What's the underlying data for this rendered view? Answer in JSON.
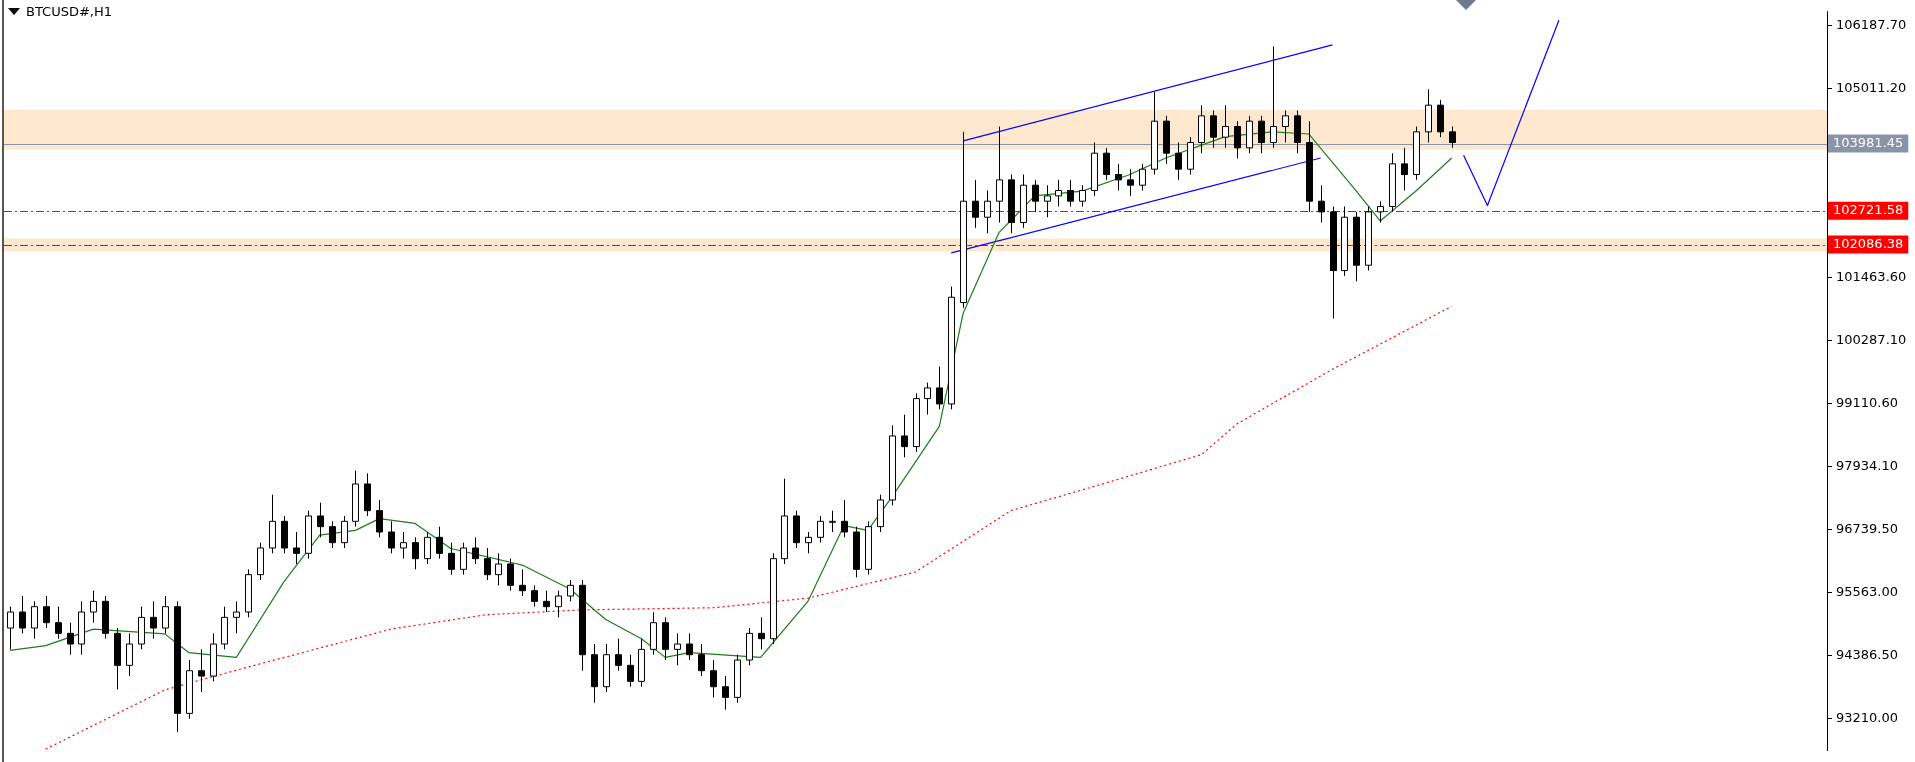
{
  "chart_data": {
    "type": "candlestick",
    "title": "BTCUSD#,H1",
    "categories": [
      null,
      null,
      null,
      null,
      null,
      null,
      null,
      null,
      null,
      null,
      null,
      null,
      null,
      null,
      null,
      null,
      null,
      null,
      null,
      null,
      null,
      null,
      null,
      null,
      null,
      null,
      null,
      null,
      null,
      null,
      null,
      null,
      null,
      null,
      null,
      null,
      null,
      null,
      null,
      null,
      null,
      null,
      null,
      null,
      null,
      null,
      null,
      null,
      null,
      null,
      null,
      null,
      null,
      null,
      null,
      null,
      null,
      null,
      null,
      null,
      null,
      null,
      null,
      null,
      null,
      null,
      null,
      null,
      null,
      null,
      null,
      null,
      null,
      null,
      null,
      null,
      null,
      null,
      null,
      null,
      null,
      null,
      null,
      null,
      null,
      null,
      null,
      null,
      null,
      null,
      null,
      null,
      null,
      null,
      null,
      null,
      null,
      null,
      null,
      null,
      null,
      null,
      null,
      null,
      null,
      null,
      null,
      null,
      null,
      null,
      null,
      null,
      null,
      null,
      null,
      null,
      null,
      null,
      null,
      null,
      null,
      null,
      null,
      null,
      null,
      null,
      null,
      null,
      null,
      null,
      null,
      null,
      null,
      null,
      null,
      null,
      null,
      null,
      null,
      null,
      null,
      null,
      null,
      null,
      null,
      null,
      null,
      null,
      null,
      null,
      null,
      null,
      null
    ],
    "ohlc": [
      [
        94900,
        95300,
        94500,
        95200
      ],
      [
        95200,
        95500,
        94800,
        94900
      ],
      [
        94900,
        95400,
        94700,
        95300
      ],
      [
        95300,
        95500,
        94900,
        95000
      ],
      [
        95000,
        95300,
        94700,
        94800
      ],
      [
        94800,
        95000,
        94400,
        94600
      ],
      [
        94600,
        95400,
        94400,
        95200
      ],
      [
        95200,
        95600,
        95000,
        95400
      ],
      [
        95400,
        95500,
        94700,
        94800
      ],
      [
        94800,
        94900,
        93750,
        94200
      ],
      [
        94200,
        94800,
        94000,
        94600
      ],
      [
        94600,
        95300,
        94500,
        95100
      ],
      [
        95100,
        95400,
        94700,
        94900
      ],
      [
        94900,
        95500,
        94800,
        95300
      ],
      [
        95300,
        95400,
        92950,
        93300
      ],
      [
        93300,
        94300,
        93200,
        94100
      ],
      [
        94100,
        94500,
        93700,
        94000
      ],
      [
        94000,
        94800,
        93900,
        94600
      ],
      [
        94600,
        95300,
        94500,
        95100
      ],
      [
        95100,
        95400,
        94800,
        95200
      ],
      [
        95200,
        96000,
        95100,
        95900
      ],
      [
        95900,
        96500,
        95800,
        96400
      ],
      [
        96400,
        97400,
        96300,
        96900
      ],
      [
        96900,
        97000,
        96300,
        96400
      ],
      [
        96400,
        96700,
        96100,
        96300
      ],
      [
        96300,
        97100,
        96200,
        97000
      ],
      [
        97000,
        97250,
        96600,
        96800
      ],
      [
        96800,
        96900,
        96400,
        96500
      ],
      [
        96500,
        97000,
        96400,
        96900
      ],
      [
        96900,
        97850,
        96800,
        97600
      ],
      [
        97600,
        97800,
        97000,
        97100
      ],
      [
        97100,
        97300,
        96600,
        96700
      ],
      [
        96700,
        96900,
        96300,
        96400
      ],
      [
        96400,
        96700,
        96200,
        96500
      ],
      [
        96500,
        96600,
        96000,
        96200
      ],
      [
        96200,
        96700,
        96100,
        96600
      ],
      [
        96600,
        96800,
        96200,
        96300
      ],
      [
        96300,
        96500,
        95900,
        96000
      ],
      [
        96000,
        96500,
        95900,
        96400
      ],
      [
        96400,
        96600,
        96100,
        96200
      ],
      [
        96200,
        96400,
        95800,
        95900
      ],
      [
        95900,
        96300,
        95700,
        96100
      ],
      [
        96100,
        96200,
        95600,
        95700
      ],
      [
        95700,
        96000,
        95500,
        95600
      ],
      [
        95600,
        95700,
        95300,
        95400
      ],
      [
        95400,
        95600,
        95200,
        95300
      ],
      [
        95300,
        95600,
        95100,
        95500
      ],
      [
        95500,
        95800,
        95400,
        95700
      ],
      [
        95700,
        95800,
        94100,
        94400
      ],
      [
        94400,
        94600,
        93500,
        93800
      ],
      [
        93800,
        94600,
        93700,
        94400
      ],
      [
        94400,
        94700,
        94100,
        94200
      ],
      [
        94200,
        94400,
        93800,
        93900
      ],
      [
        93900,
        94700,
        93800,
        94500
      ],
      [
        94500,
        95200,
        94400,
        95000
      ],
      [
        95000,
        95100,
        94300,
        94500
      ],
      [
        94500,
        94800,
        94200,
        94600
      ],
      [
        94600,
        94800,
        94300,
        94400
      ],
      [
        94400,
        94600,
        94000,
        94100
      ],
      [
        94100,
        94300,
        93600,
        93800
      ],
      [
        93800,
        94000,
        93370,
        93600
      ],
      [
        93600,
        94400,
        93500,
        94300
      ],
      [
        94300,
        94900,
        94200,
        94800
      ],
      [
        94800,
        95100,
        94500,
        94700
      ],
      [
        94700,
        96300,
        94600,
        96200
      ],
      [
        96200,
        97700,
        96100,
        97000
      ],
      [
        97000,
        97100,
        96400,
        96500
      ],
      [
        96500,
        96700,
        96300,
        96600
      ],
      [
        96600,
        97000,
        96500,
        96900
      ],
      [
        96900,
        97100,
        96700,
        96900
      ],
      [
        96900,
        97300,
        96600,
        96700
      ],
      [
        96700,
        96800,
        95850,
        96000
      ],
      [
        96000,
        96900,
        95900,
        96800
      ],
      [
        96800,
        97400,
        96700,
        97300
      ],
      [
        97300,
        98700,
        97200,
        98500
      ],
      [
        98500,
        98900,
        98100,
        98300
      ],
      [
        98300,
        99300,
        98200,
        99200
      ],
      [
        99200,
        99500,
        98900,
        99400
      ],
      [
        99400,
        99800,
        99000,
        99100
      ],
      [
        99100,
        101300,
        99000,
        101100
      ],
      [
        101000,
        104200,
        100900,
        102900
      ],
      [
        102900,
        103300,
        102400,
        102600
      ],
      [
        102600,
        103100,
        102300,
        102900
      ],
      [
        102900,
        104300,
        102500,
        103300
      ],
      [
        103300,
        103400,
        102300,
        102500
      ],
      [
        102500,
        103400,
        102400,
        103200
      ],
      [
        103200,
        103300,
        102700,
        102900
      ],
      [
        102900,
        103200,
        102600,
        103000
      ],
      [
        103000,
        103300,
        102800,
        103100
      ],
      [
        103100,
        103300,
        102800,
        102900
      ],
      [
        102900,
        103200,
        102800,
        103100
      ],
      [
        103100,
        104000,
        103000,
        103800
      ],
      [
        103800,
        103900,
        103300,
        103400
      ],
      [
        103400,
        103600,
        103100,
        103300
      ],
      [
        103300,
        103500,
        103000,
        103200
      ],
      [
        103200,
        103600,
        103100,
        103500
      ],
      [
        103500,
        104950,
        103400,
        104400
      ],
      [
        104400,
        104500,
        103600,
        103800
      ],
      [
        103800,
        104000,
        103300,
        103500
      ],
      [
        103500,
        104100,
        103400,
        104000
      ],
      [
        104000,
        104700,
        103800,
        104500
      ],
      [
        104500,
        104600,
        103900,
        104100
      ],
      [
        104100,
        104700,
        103900,
        104300
      ],
      [
        104300,
        104400,
        103700,
        103900
      ],
      [
        103900,
        104500,
        103800,
        104400
      ],
      [
        104400,
        104500,
        103800,
        104000
      ],
      [
        104000,
        105800,
        103900,
        104300
      ],
      [
        104300,
        104600,
        104000,
        104500
      ],
      [
        104500,
        104600,
        103800,
        104000
      ],
      [
        104000,
        104400,
        102700,
        102900
      ],
      [
        102900,
        103200,
        102500,
        102700
      ],
      [
        102700,
        102800,
        100700,
        101600
      ],
      [
        101600,
        102800,
        101500,
        102600
      ],
      [
        102600,
        102700,
        101400,
        101700
      ],
      [
        101700,
        102800,
        101600,
        102700
      ],
      [
        102700,
        102900,
        102500,
        102800
      ],
      [
        102800,
        103800,
        102700,
        103600
      ],
      [
        103600,
        103900,
        103100,
        103400
      ],
      [
        103400,
        104300,
        103300,
        104200
      ],
      [
        104200,
        105000,
        104000,
        104700
      ],
      [
        104700,
        104800,
        104100,
        104200
      ],
      [
        104200,
        104300,
        103900,
        104000
      ],
      null,
      null,
      null,
      null,
      null,
      null,
      null,
      null,
      null,
      null,
      null,
      null,
      null,
      null,
      null,
      null,
      null,
      null,
      null,
      null,
      null,
      null,
      null,
      null,
      null,
      null,
      null,
      null,
      null,
      null,
      null
    ],
    "series": [
      {
        "type": "line",
        "color": "#1e7b1e",
        "line_style": "solid",
        "values": [
          94480,
          null,
          null,
          94570,
          null,
          null,
          null,
          94880,
          null,
          null,
          null,
          null,
          null,
          94790,
          null,
          94440,
          null,
          null,
          null,
          94350,
          null,
          null,
          null,
          95770,
          null,
          null,
          96640,
          null,
          null,
          96730,
          null,
          96950,
          null,
          null,
          96860,
          null,
          null,
          96390,
          null,
          null,
          null,
          null,
          null,
          96080,
          null,
          null,
          null,
          95630,
          null,
          null,
          95060,
          null,
          null,
          94700,
          null,
          94350,
          null,
          94440,
          null,
          null,
          null,
          null,
          null,
          94350,
          null,
          null,
          null,
          95410,
          null,
          null,
          96820,
          null,
          96730,
          null,
          97350,
          null,
          null,
          null,
          98680,
          null,
          100800,
          null,
          null,
          102310,
          null,
          null,
          103000,
          null,
          null,
          null,
          103090,
          null,
          null,
          null,
          103400,
          null,
          null,
          103710,
          null,
          null,
          null,
          null,
          104110,
          null,
          null,
          null,
          104200,
          null,
          null,
          104160,
          null,
          null,
          null,
          103090,
          null,
          102530,
          null,
          null,
          103090,
          null,
          null,
          103710,
          null,
          null,
          null,
          null,
          null,
          null,
          null,
          null,
          null,
          null,
          null,
          null,
          null,
          null,
          null,
          null,
          null,
          null,
          null,
          null,
          null,
          null,
          null,
          null,
          null,
          null,
          null,
          null,
          null,
          null,
          null
        ]
      },
      {
        "type": "line",
        "color": "#ff0000",
        "line_style": "dotted",
        "values": [
          null,
          null,
          null,
          92630,
          null,
          null,
          null,
          null,
          null,
          null,
          null,
          null,
          null,
          93740,
          null,
          null,
          null,
          null,
          null,
          null,
          94170,
          null,
          null,
          null,
          null,
          null,
          null,
          null,
          null,
          null,
          null,
          null,
          94880,
          null,
          null,
          null,
          null,
          null,
          null,
          null,
          95150,
          null,
          null,
          null,
          null,
          null,
          null,
          null,
          95240,
          null,
          null,
          null,
          null,
          null,
          null,
          null,
          null,
          null,
          null,
          95280,
          null,
          null,
          null,
          null,
          null,
          null,
          null,
          95460,
          null,
          null,
          null,
          null,
          null,
          null,
          null,
          null,
          95950,
          null,
          null,
          null,
          null,
          null,
          null,
          null,
          97100,
          null,
          null,
          null,
          null,
          null,
          null,
          null,
          97620,
          null,
          null,
          null,
          null,
          null,
          null,
          null,
          98150,
          null,
          null,
          98730,
          null,
          null,
          null,
          null,
          null,
          null,
          null,
          99750,
          null,
          null,
          null,
          null,
          null,
          null,
          null,
          null,
          null,
          100930,
          null,
          null,
          null,
          null,
          null,
          null,
          null,
          null,
          null,
          null,
          null,
          null,
          null,
          null,
          null,
          null,
          null,
          null,
          null,
          null,
          null,
          null,
          null,
          null,
          null,
          null,
          null,
          null,
          null,
          null,
          null
        ]
      },
      {
        "type": "line",
        "color": "#0000ff",
        "line_style": "solid",
        "values": [
          null,
          null,
          null,
          null,
          null,
          null,
          null,
          null,
          null,
          null,
          null,
          null,
          null,
          null,
          null,
          null,
          null,
          null,
          null,
          null,
          null,
          null,
          null,
          null,
          null,
          null,
          null,
          null,
          null,
          null,
          null,
          null,
          null,
          null,
          null,
          null,
          null,
          null,
          null,
          null,
          null,
          null,
          null,
          null,
          null,
          null,
          null,
          null,
          null,
          null,
          null,
          null,
          null,
          null,
          null,
          null,
          null,
          null,
          null,
          null,
          null,
          null,
          null,
          null,
          null,
          null,
          null,
          null,
          null,
          null,
          null,
          null,
          null,
          null,
          null,
          null,
          null,
          null,
          null,
          null,
          104030,
          null,
          null,
          null,
          null,
          null,
          null,
          null,
          null,
          null,
          null,
          null,
          null,
          null,
          null,
          null,
          null,
          null,
          null,
          null,
          null,
          null,
          null,
          null,
          null,
          null,
          null,
          null,
          null,
          null,
          null,
          105830,
          null,
          null,
          null,
          null,
          null,
          null,
          null,
          null,
          null,
          null,
          null,
          null,
          null,
          null,
          null,
          null,
          null,
          null,
          null,
          null,
          null,
          null,
          null,
          null,
          null,
          null,
          null,
          null,
          null,
          null,
          null,
          null,
          null,
          null,
          null,
          null,
          null,
          null,
          null,
          null,
          null
        ]
      },
      {
        "type": "line",
        "color": "#0000ff",
        "line_style": "solid",
        "values": [
          null,
          null,
          null,
          null,
          null,
          null,
          null,
          null,
          null,
          null,
          null,
          null,
          null,
          null,
          null,
          null,
          null,
          null,
          null,
          null,
          null,
          null,
          null,
          null,
          null,
          null,
          null,
          null,
          null,
          null,
          null,
          null,
          null,
          null,
          null,
          null,
          null,
          null,
          null,
          null,
          null,
          null,
          null,
          null,
          null,
          null,
          null,
          null,
          null,
          null,
          null,
          null,
          null,
          null,
          null,
          null,
          null,
          null,
          null,
          null,
          null,
          null,
          null,
          null,
          null,
          null,
          null,
          null,
          null,
          null,
          null,
          null,
          null,
          null,
          null,
          null,
          null,
          null,
          null,
          101930,
          null,
          null,
          null,
          null,
          null,
          null,
          null,
          null,
          null,
          null,
          null,
          null,
          null,
          null,
          null,
          null,
          null,
          null,
          null,
          null,
          null,
          null,
          null,
          null,
          null,
          null,
          null,
          null,
          null,
          null,
          103710,
          null,
          null,
          null,
          null,
          null,
          null,
          null,
          null,
          null,
          null,
          null,
          null,
          null,
          null,
          null,
          null,
          null,
          null,
          null,
          null,
          null,
          null,
          null,
          null,
          null,
          null,
          null,
          null,
          null,
          null,
          null,
          null,
          null,
          null,
          null,
          null,
          null,
          null,
          null,
          null,
          null,
          null
        ]
      },
      {
        "type": "line",
        "color": "#0000ff",
        "line_style": "solid",
        "values": [
          null,
          null,
          null,
          null,
          null,
          null,
          null,
          null,
          null,
          null,
          null,
          null,
          null,
          null,
          null,
          null,
          null,
          null,
          null,
          null,
          null,
          null,
          null,
          null,
          null,
          null,
          null,
          null,
          null,
          null,
          null,
          null,
          null,
          null,
          null,
          null,
          null,
          null,
          null,
          null,
          null,
          null,
          null,
          null,
          null,
          null,
          null,
          null,
          null,
          null,
          null,
          null,
          null,
          null,
          null,
          null,
          null,
          null,
          null,
          null,
          null,
          null,
          null,
          null,
          null,
          null,
          null,
          null,
          null,
          null,
          null,
          null,
          null,
          null,
          null,
          null,
          null,
          null,
          null,
          null,
          null,
          null,
          null,
          null,
          null,
          null,
          null,
          null,
          null,
          null,
          null,
          null,
          null,
          null,
          null,
          null,
          null,
          null,
          null,
          null,
          null,
          null,
          null,
          null,
          null,
          null,
          null,
          null,
          null,
          null,
          null,
          null,
          null,
          null,
          null,
          null,
          null,
          null,
          null,
          null,
          null,
          null,
          103760,
          null,
          102820,
          null,
          null,
          null,
          null,
          null,
          106290,
          null,
          null,
          null,
          null,
          null,
          null,
          null,
          null,
          null,
          null,
          null,
          null,
          null,
          null,
          null,
          null,
          null,
          null,
          null,
          null,
          null,
          null
        ]
      }
    ],
    "ylim": [
      92610,
      106450
    ],
    "yticks": [
      {
        "value": 93210,
        "label": "93210.00"
      },
      {
        "value": 94386.5,
        "label": "94386.50"
      },
      {
        "value": 95563,
        "label": "95563.00"
      },
      {
        "value": 96739.5,
        "label": "96739.50"
      },
      {
        "value": 97934.1,
        "label": "97934.10"
      },
      {
        "value": 99110.6,
        "label": "99110.60"
      },
      {
        "value": 100287.1,
        "label": "100287.10"
      },
      {
        "value": 101463.6,
        "label": "101463.60"
      },
      {
        "value": 103834.7,
        "label": null
      },
      {
        "value": 105011.2,
        "label": "105011.20"
      },
      {
        "value": 106187.7,
        "label": "106187.70"
      }
    ],
    "ref_lines": [
      {
        "axis": "y",
        "value": 103981.45,
        "label": "103981.45",
        "color": "#8a94a8",
        "line_style": "solid"
      },
      {
        "axis": "y",
        "value": 102721.58,
        "label": "102721.58",
        "color": "#ff0000",
        "line_style": "dashed"
      },
      {
        "axis": "y",
        "value": 102086.38,
        "label": "102086.38",
        "color": "#ff0000",
        "line_style": "dashed"
      }
    ],
    "bands": [
      {
        "axis": "y",
        "from": 103870,
        "to": 104610,
        "color": "#fde3c6"
      },
      {
        "axis": "y",
        "from": 101960,
        "to": 102200,
        "color": "#fde3c6"
      }
    ],
    "grid": false,
    "legend": false,
    "marker": "none",
    "tick_labels": "y"
  }
}
